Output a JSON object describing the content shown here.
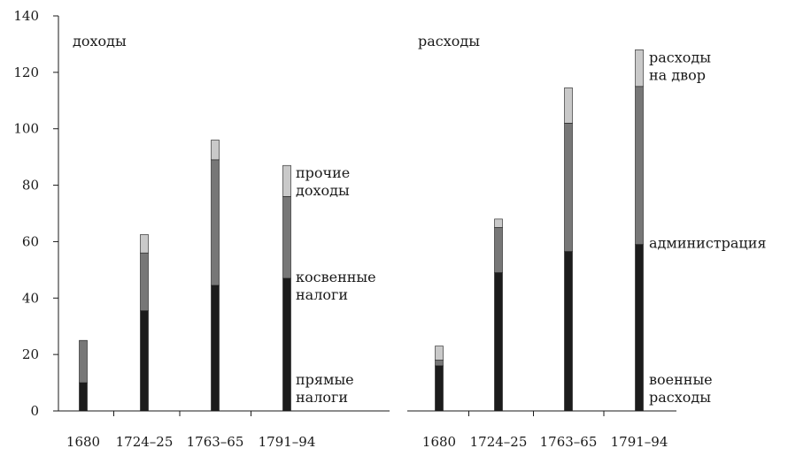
{
  "chart_data": {
    "type": "bar",
    "stacked": true,
    "y_ticks": [
      "0",
      "20",
      "40",
      "60",
      "80",
      "100",
      "120",
      "140"
    ],
    "ylim": [
      0,
      140
    ],
    "grid": false,
    "panels": [
      {
        "title": "доходы",
        "categories": [
          "1680",
          "1724–25",
          "1763–65",
          "1791–94"
        ],
        "series": [
          {
            "name": "прямые налоги",
            "values": [
              10,
              35.5,
              44.5,
              47
            ],
            "color": "#1c1c1c"
          },
          {
            "name": "косвенные налоги",
            "values": [
              15,
              20.5,
              44.5,
              29
            ],
            "color": "#777777"
          },
          {
            "name": "прочие доходы",
            "values": [
              0,
              6.5,
              7,
              11
            ],
            "color": "#c9c9c9"
          }
        ],
        "labels": [
          {
            "lines": [
              "прочие",
              "доходы"
            ],
            "series": 2
          },
          {
            "lines": [
              "косвенные",
              "налоги"
            ],
            "series": 1
          },
          {
            "lines": [
              "прямые",
              "налоги"
            ],
            "series": 0
          }
        ]
      },
      {
        "title": "расходы",
        "categories": [
          "1680",
          "1724–25",
          "1763–65",
          "1791–94"
        ],
        "series": [
          {
            "name": "военные расходы",
            "values": [
              16,
              49,
              56.5,
              59
            ],
            "color": "#1c1c1c"
          },
          {
            "name": "администрация",
            "values": [
              2,
              16,
              45.5,
              56
            ],
            "color": "#777777"
          },
          {
            "name": "расходы на двор",
            "values": [
              5,
              3,
              12.5,
              13
            ],
            "color": "#c9c9c9"
          }
        ],
        "labels": [
          {
            "lines": [
              "расходы",
              "на двор"
            ],
            "series": 2
          },
          {
            "lines": [
              "администрация"
            ],
            "series": 1
          },
          {
            "lines": [
              "военные",
              "расходы"
            ],
            "series": 0
          }
        ]
      }
    ]
  }
}
